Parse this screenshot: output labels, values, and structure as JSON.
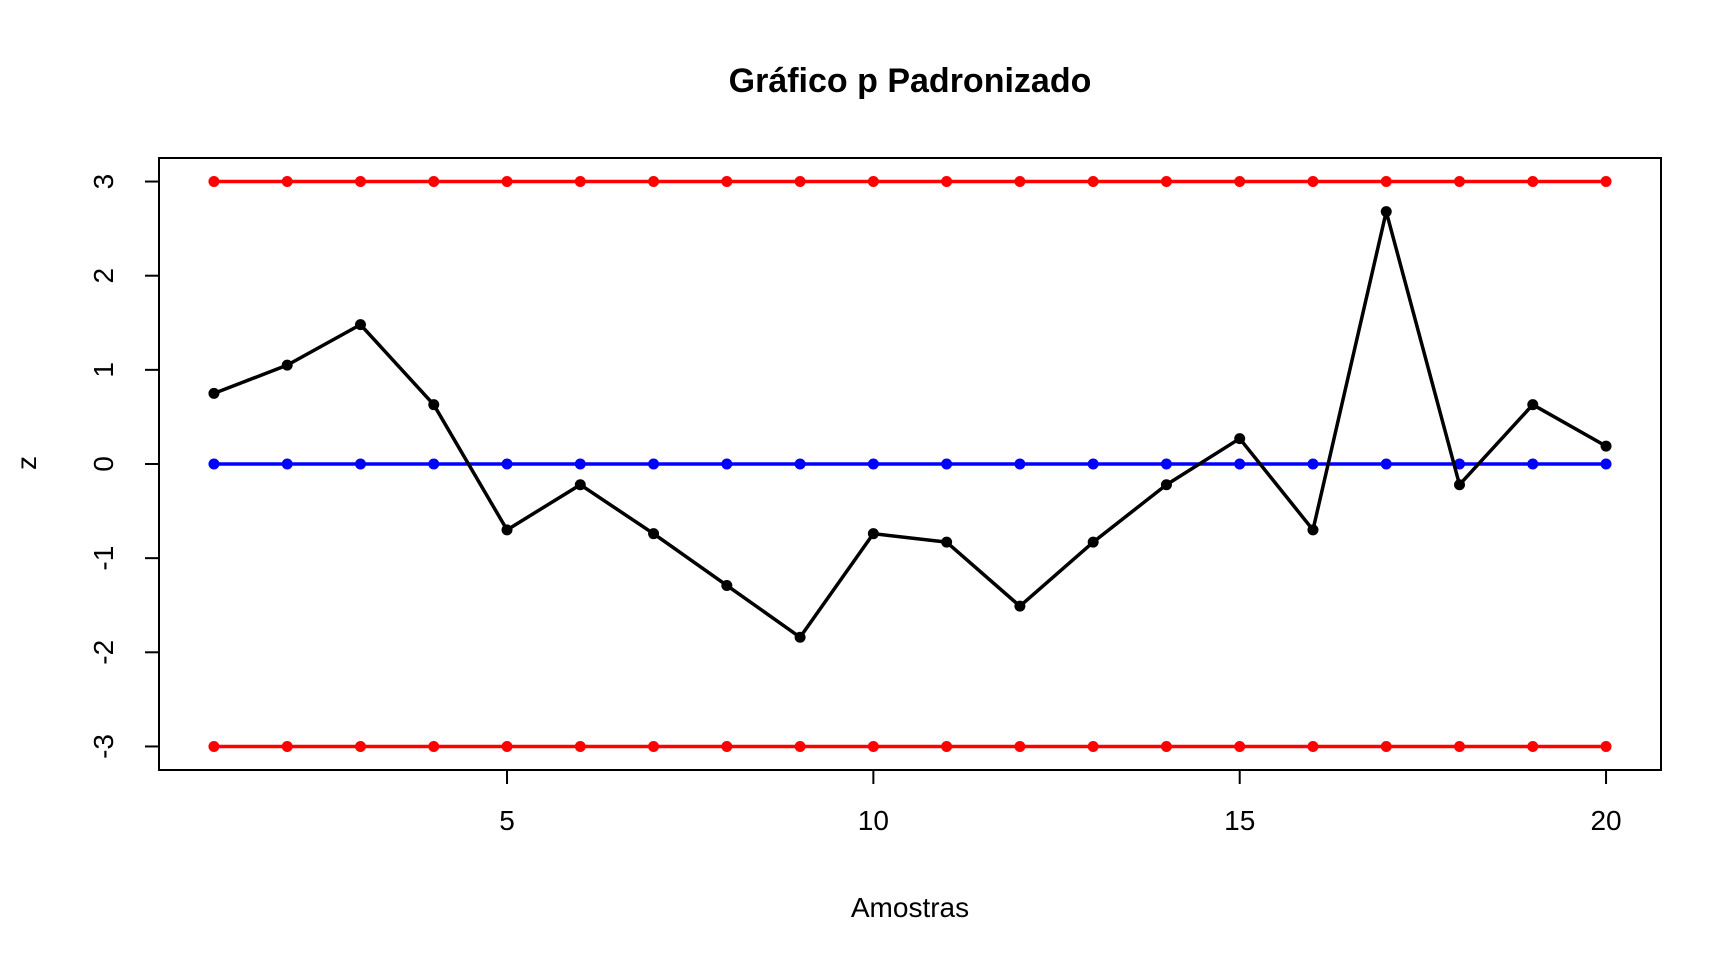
{
  "chart_data": {
    "type": "line",
    "title": "Gráfico p Padronizado",
    "xlabel": "Amostras",
    "ylabel": "z",
    "xlim": [
      0.25,
      20.75
    ],
    "ylim": [
      -3.25,
      3.25
    ],
    "x_ticks": [
      5,
      10,
      15,
      20
    ],
    "y_ticks": [
      -3,
      -2,
      -1,
      0,
      1,
      2,
      3
    ],
    "x_tick_labels": [
      "5",
      "10",
      "15",
      "20"
    ],
    "y_tick_labels": [
      "-3",
      "-2",
      "-1",
      "0",
      "1",
      "2",
      "3"
    ],
    "grid": false,
    "x": [
      1,
      2,
      3,
      4,
      5,
      6,
      7,
      8,
      9,
      10,
      11,
      12,
      13,
      14,
      15,
      16,
      17,
      18,
      19,
      20
    ],
    "series": [
      {
        "role": "upper-control-limit",
        "color": "#ff0000",
        "values": [
          3,
          3,
          3,
          3,
          3,
          3,
          3,
          3,
          3,
          3,
          3,
          3,
          3,
          3,
          3,
          3,
          3,
          3,
          3,
          3
        ]
      },
      {
        "role": "center-line",
        "color": "#0000ff",
        "values": [
          0,
          0,
          0,
          0,
          0,
          0,
          0,
          0,
          0,
          0,
          0,
          0,
          0,
          0,
          0,
          0,
          0,
          0,
          0,
          0
        ]
      },
      {
        "role": "lower-control-limit",
        "color": "#ff0000",
        "values": [
          -3,
          -3,
          -3,
          -3,
          -3,
          -3,
          -3,
          -3,
          -3,
          -3,
          -3,
          -3,
          -3,
          -3,
          -3,
          -3,
          -3,
          -3,
          -3,
          -3
        ]
      },
      {
        "role": "sample-z",
        "color": "#000000",
        "values": [
          0.75,
          1.05,
          1.48,
          0.63,
          -0.7,
          -0.22,
          -0.74,
          -1.29,
          -1.84,
          -0.74,
          -0.83,
          -1.51,
          -0.83,
          -0.22,
          0.27,
          -0.7,
          2.68,
          -0.22,
          0.63,
          0.19
        ]
      }
    ]
  }
}
